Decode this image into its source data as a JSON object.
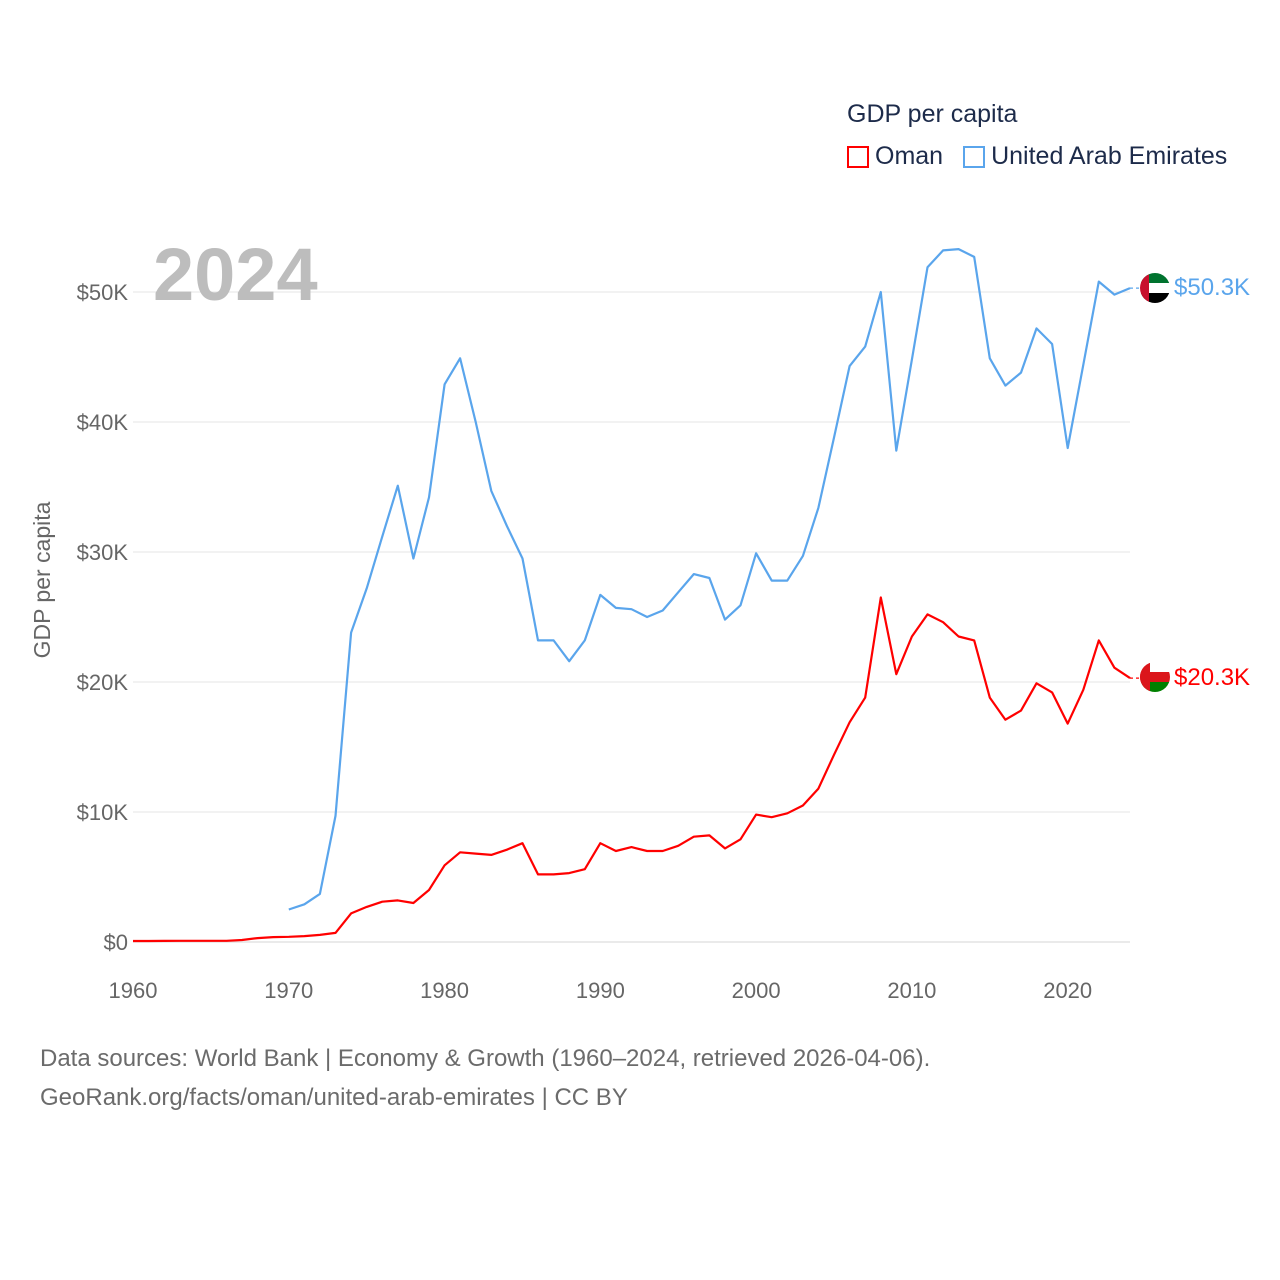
{
  "chart_data": {
    "type": "line",
    "title": "GDP per capita",
    "year_label": "2024",
    "ylabel": "GDP per capita",
    "xlabel": "",
    "xlim": [
      1960,
      2024
    ],
    "ylim": [
      0,
      55000
    ],
    "grid": true,
    "legend_placement": "top-right",
    "x_ticks": [
      1960,
      1970,
      1980,
      1990,
      2000,
      2010,
      2020
    ],
    "x_tick_labels": [
      "1960",
      "1970",
      "1980",
      "1990",
      "2000",
      "2010",
      "2020"
    ],
    "y_ticks": [
      0,
      10000,
      20000,
      30000,
      40000,
      50000
    ],
    "y_tick_labels": [
      "$0",
      "$10K",
      "$20K",
      "$30K",
      "$40K",
      "$50K"
    ],
    "series": [
      {
        "name": "Oman",
        "color": "#ff0000",
        "start_year": 1960,
        "end_label": "$20.3K",
        "values": [
          80,
          80,
          85,
          90,
          90,
          90,
          95,
          150,
          300,
          380,
          400,
          450,
          550,
          700,
          2200,
          2700,
          3100,
          3200,
          3000,
          4000,
          5900,
          6900,
          6800,
          6700,
          7100,
          7600,
          5200,
          5200,
          5300,
          5600,
          7600,
          7000,
          7300,
          7000,
          7000,
          7400,
          8100,
          8200,
          7200,
          7900,
          9800,
          9600,
          9900,
          10500,
          11800,
          14400,
          16900,
          18800,
          26500,
          20600,
          23500,
          25200,
          24600,
          23500,
          23200,
          18800,
          17100,
          17800,
          19900,
          19200,
          16800,
          19400,
          23200,
          21100,
          20300
        ]
      },
      {
        "name": "United Arab Emirates",
        "color": "#5aa5ec",
        "start_year": 1970,
        "end_label": "$50.3K",
        "values": [
          2500,
          2900,
          3700,
          9700,
          23800,
          27200,
          31200,
          35100,
          29500,
          34200,
          42900,
          44900,
          40000,
          34700,
          32000,
          29500,
          23200,
          23200,
          21600,
          23200,
          26700,
          25700,
          25600,
          25000,
          25500,
          26900,
          28300,
          28000,
          24800,
          25900,
          29900,
          27800,
          27800,
          29700,
          33400,
          38800,
          44300,
          45800,
          50000,
          37800,
          44800,
          51900,
          53200,
          53300,
          52700,
          44900,
          42800,
          43800,
          47200,
          46000,
          38000,
          44400,
          50800,
          49800,
          50300
        ]
      }
    ]
  },
  "footer": {
    "line1": "Data sources: World Bank | Economy & Growth (1960–2024, retrieved 2026-04-06).",
    "line2": "GeoRank.org/facts/oman/united-arab-emirates | CC BY"
  }
}
